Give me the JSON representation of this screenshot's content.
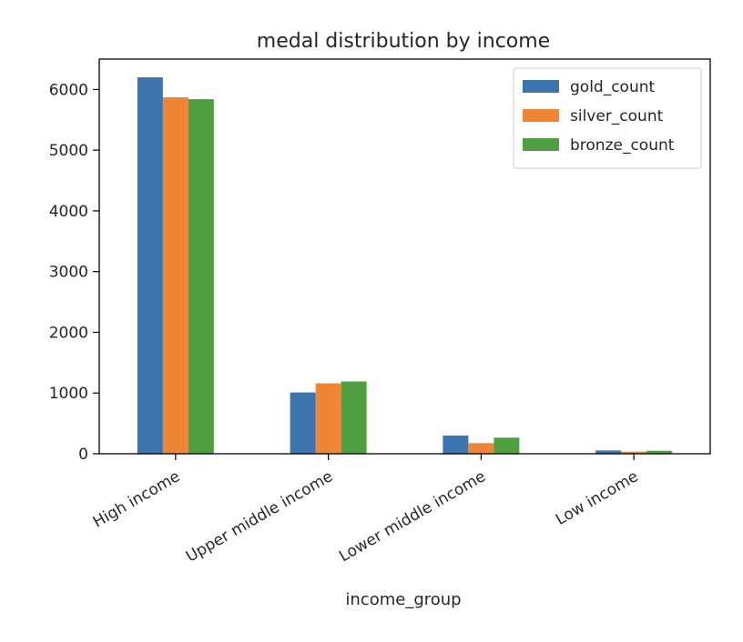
{
  "chart_data": {
    "type": "bar",
    "title": "medal distribution by income",
    "xlabel": "income_group",
    "ylabel": "",
    "categories": [
      "High income",
      "Upper middle income",
      "Lower middle income",
      "Low income"
    ],
    "series": [
      {
        "name": "gold_count",
        "color": "#3d74b0",
        "values": [
          6200,
          1010,
          300,
          55
        ]
      },
      {
        "name": "silver_count",
        "color": "#ef8535",
        "values": [
          5870,
          1160,
          175,
          35
        ]
      },
      {
        "name": "bronze_count",
        "color": "#4f9e3f",
        "values": [
          5840,
          1190,
          265,
          50
        ]
      }
    ],
    "ylim": [
      0,
      6500
    ],
    "yticks": [
      0,
      1000,
      2000,
      3000,
      4000,
      5000,
      6000
    ],
    "grid": false,
    "legend_position": "top-right"
  }
}
